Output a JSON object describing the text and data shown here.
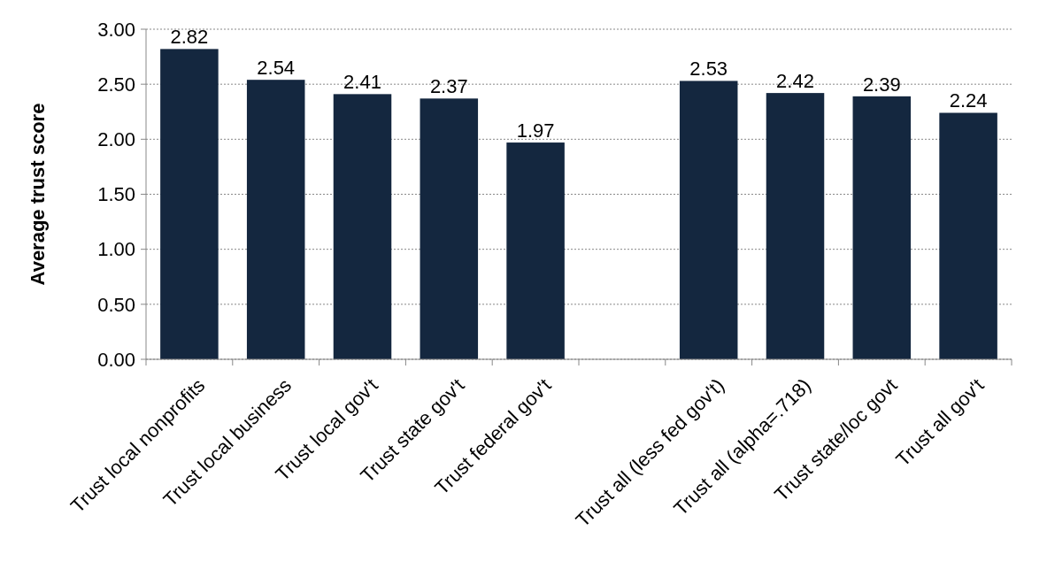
{
  "chart_data": {
    "type": "bar",
    "ylabel": "Average trust score",
    "categories": [
      "Trust local nonprofits",
      "Trust local business",
      "Trust local gov't",
      "Trust state gov't",
      "Trust federal gov't",
      null,
      "Trust all (less fed gov't)",
      "Trust all (alpha=.718)",
      "Trust state/loc govt",
      "Trust all gov't"
    ],
    "values": [
      2.82,
      2.54,
      2.41,
      2.37,
      1.97,
      null,
      2.53,
      2.42,
      2.39,
      2.24
    ],
    "color": "#14273f",
    "ylim": [
      0,
      3
    ],
    "yticks": [
      {
        "value": 0,
        "label": "0.00"
      },
      {
        "value": 0.5,
        "label": "0.50"
      },
      {
        "value": 1,
        "label": "1.00"
      },
      {
        "value": 1.5,
        "label": "1.50"
      },
      {
        "value": 2,
        "label": "2.00"
      },
      {
        "value": 2.5,
        "label": "2.50"
      },
      {
        "value": 3,
        "label": "3.00"
      }
    ],
    "grid": "y",
    "data_labels": true
  }
}
